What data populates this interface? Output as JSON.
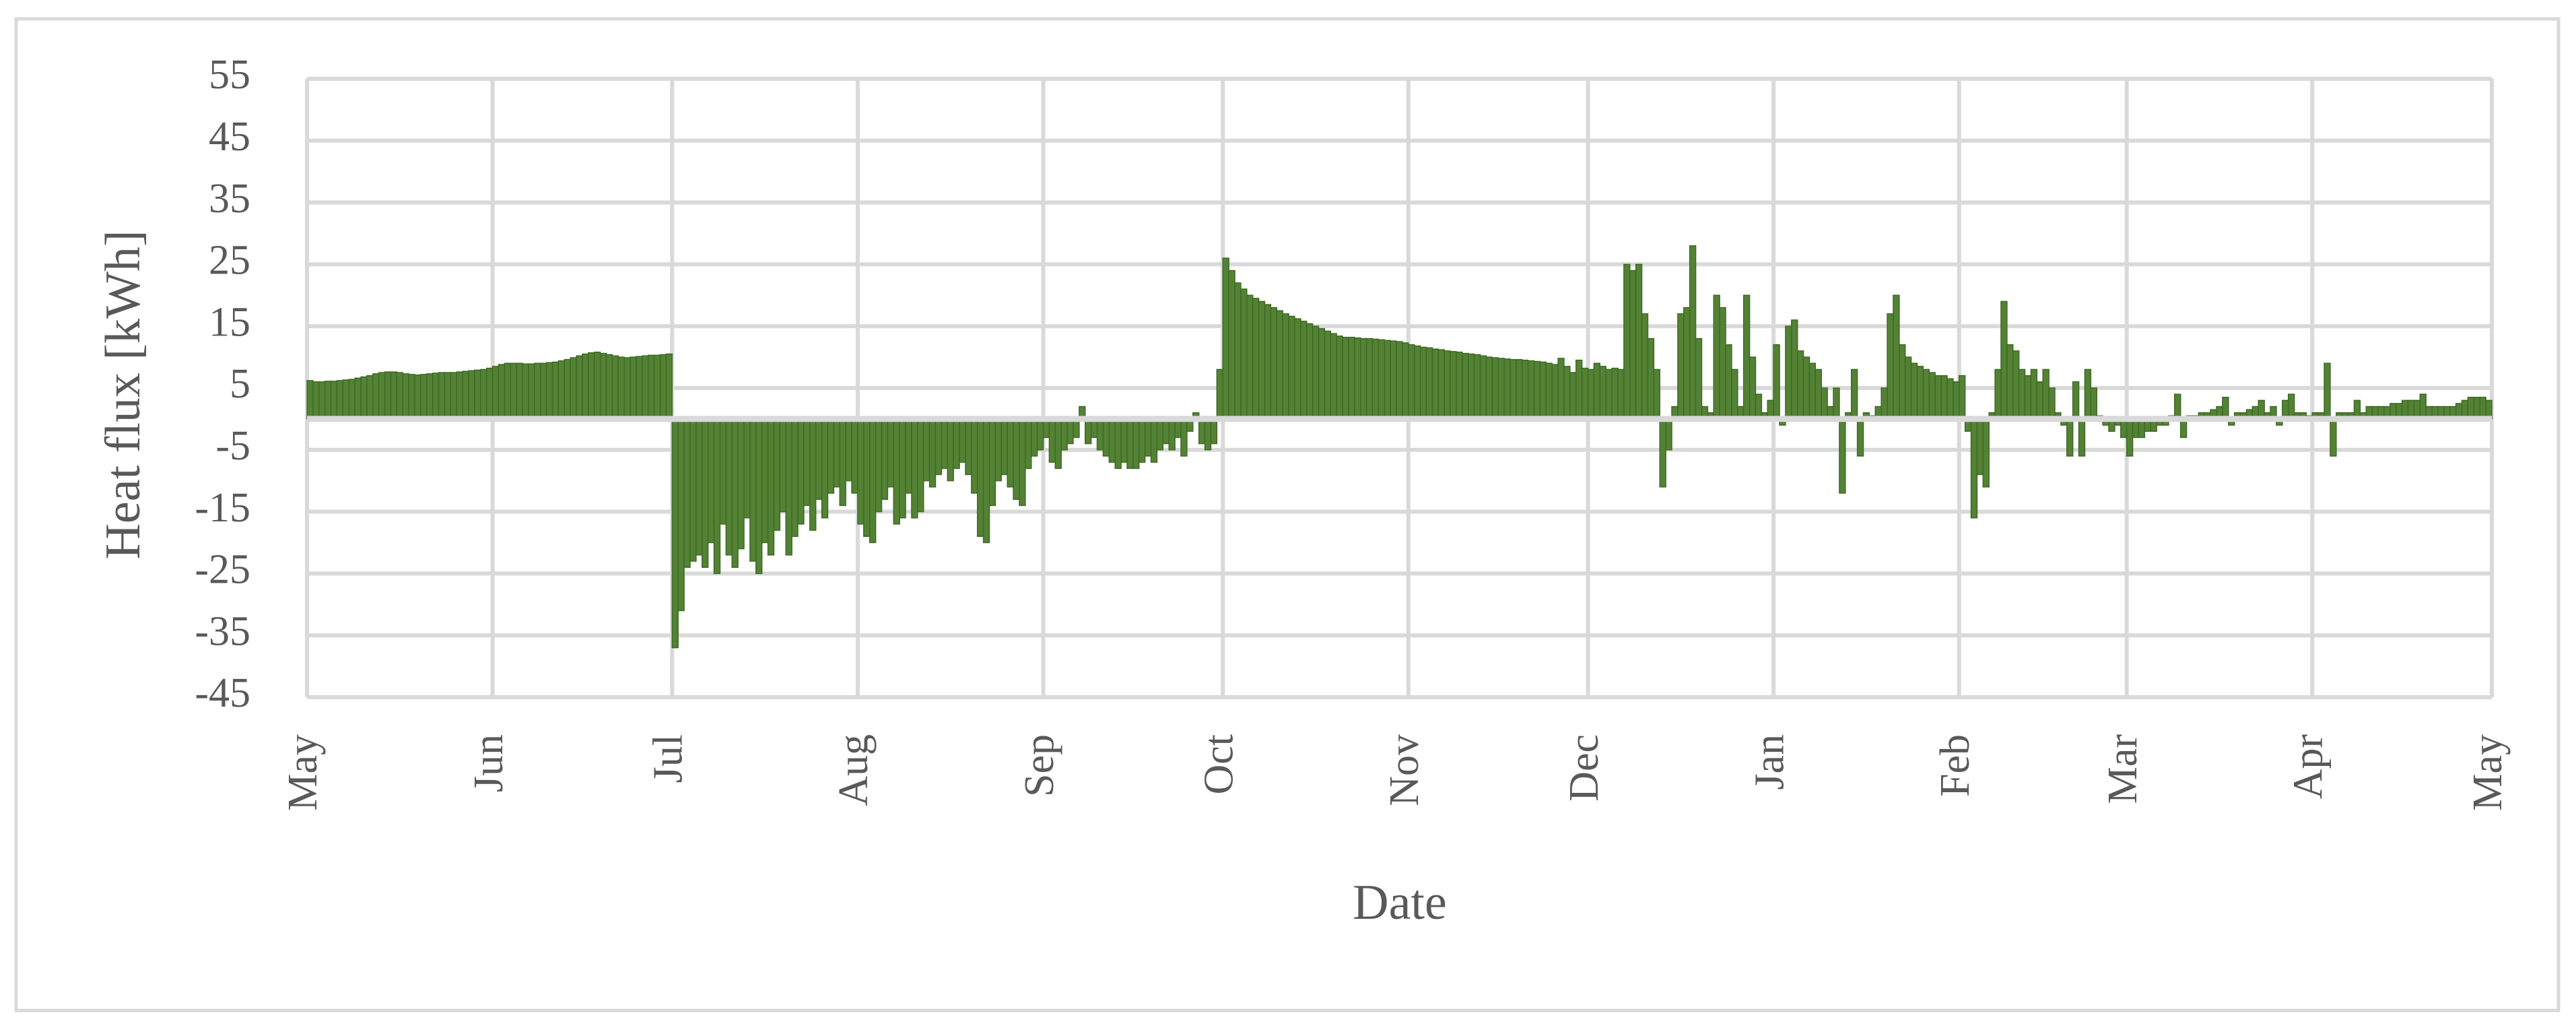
{
  "chart_data": {
    "type": "bar",
    "x_label": "Date",
    "y_label": "Heat flux [kWh]",
    "color": "#548235",
    "edge_color": "#3e6a24",
    "grid": true,
    "xlim": [
      0,
      365
    ],
    "xticks": [
      {
        "value": 0,
        "label": "May"
      },
      {
        "value": 31,
        "label": "Jun"
      },
      {
        "value": 61,
        "label": "Jul"
      },
      {
        "value": 92,
        "label": "Aug"
      },
      {
        "value": 123,
        "label": "Sep"
      },
      {
        "value": 153,
        "label": "Oct"
      },
      {
        "value": 184,
        "label": "Nov"
      },
      {
        "value": 214,
        "label": "Dec"
      },
      {
        "value": 245,
        "label": "Jan"
      },
      {
        "value": 276,
        "label": "Feb"
      },
      {
        "value": 304,
        "label": "Mar"
      },
      {
        "value": 335,
        "label": "Apr"
      },
      {
        "value": 365,
        "label": "May"
      }
    ],
    "ylim": [
      -45,
      55
    ],
    "yticks": [
      -45,
      -35,
      -25,
      -15,
      -5,
      5,
      15,
      25,
      35,
      45,
      55
    ],
    "x": [
      0,
      1,
      2,
      3,
      4,
      5,
      6,
      7,
      8,
      9,
      10,
      11,
      12,
      13,
      14,
      15,
      16,
      17,
      18,
      19,
      20,
      21,
      22,
      23,
      24,
      25,
      26,
      27,
      28,
      29,
      30,
      31,
      32,
      33,
      34,
      35,
      36,
      37,
      38,
      39,
      40,
      41,
      42,
      43,
      44,
      45,
      46,
      47,
      48,
      49,
      50,
      51,
      52,
      53,
      54,
      55,
      56,
      57,
      58,
      59,
      60,
      61,
      62,
      63,
      64,
      65,
      66,
      67,
      68,
      69,
      70,
      71,
      72,
      73,
      74,
      75,
      76,
      77,
      78,
      79,
      80,
      81,
      82,
      83,
      84,
      85,
      86,
      87,
      88,
      89,
      90,
      91,
      92,
      93,
      94,
      95,
      96,
      97,
      98,
      99,
      100,
      101,
      102,
      103,
      104,
      105,
      106,
      107,
      108,
      109,
      110,
      111,
      112,
      113,
      114,
      115,
      116,
      117,
      118,
      119,
      120,
      121,
      122,
      123,
      124,
      125,
      126,
      127,
      128,
      129,
      130,
      131,
      132,
      133,
      134,
      135,
      136,
      137,
      138,
      139,
      140,
      141,
      142,
      143,
      144,
      145,
      146,
      147,
      148,
      149,
      150,
      151,
      152,
      153,
      154,
      155,
      156,
      157,
      158,
      159,
      160,
      161,
      162,
      163,
      164,
      165,
      166,
      167,
      168,
      169,
      170,
      171,
      172,
      173,
      174,
      175,
      176,
      177,
      178,
      179,
      180,
      181,
      182,
      183,
      184,
      185,
      186,
      187,
      188,
      189,
      190,
      191,
      192,
      193,
      194,
      195,
      196,
      197,
      198,
      199,
      200,
      201,
      202,
      203,
      204,
      205,
      206,
      207,
      208,
      209,
      210,
      211,
      212,
      213,
      214,
      215,
      216,
      217,
      218,
      219,
      220,
      221,
      222,
      223,
      224,
      225,
      226,
      227,
      228,
      229,
      230,
      231,
      232,
      233,
      234,
      235,
      236,
      237,
      238,
      239,
      240,
      241,
      242,
      243,
      244,
      245,
      246,
      247,
      248,
      249,
      250,
      251,
      252,
      253,
      254,
      255,
      256,
      257,
      258,
      259,
      260,
      261,
      262,
      263,
      264,
      265,
      266,
      267,
      268,
      269,
      270,
      271,
      272,
      273,
      274,
      275,
      276,
      277,
      278,
      279,
      280,
      281,
      282,
      283,
      284,
      285,
      286,
      287,
      288,
      289,
      290,
      291,
      292,
      293,
      294,
      295,
      296,
      297,
      298,
      299,
      300,
      301,
      302,
      303,
      304,
      305,
      306,
      307,
      308,
      309,
      310,
      311,
      312,
      313,
      314,
      315,
      316,
      317,
      318,
      319,
      320,
      321,
      322,
      323,
      324,
      325,
      326,
      327,
      328,
      329,
      330,
      331,
      332,
      333,
      334,
      335,
      336,
      337,
      338,
      339,
      340,
      341,
      342,
      343,
      344,
      345,
      346,
      347,
      348,
      349,
      350,
      351,
      352,
      353,
      354,
      355,
      356,
      357,
      358,
      359,
      360,
      361,
      362,
      363,
      364
    ],
    "values": [
      6.2,
      6.0,
      6.0,
      6.1,
      6.1,
      6.2,
      6.3,
      6.4,
      6.6,
      6.8,
      7.0,
      7.3,
      7.5,
      7.6,
      7.6,
      7.5,
      7.3,
      7.2,
      7.1,
      7.2,
      7.3,
      7.4,
      7.5,
      7.5,
      7.5,
      7.6,
      7.7,
      7.8,
      7.9,
      8.0,
      8.2,
      8.5,
      8.8,
      9.0,
      9.0,
      9.0,
      8.9,
      8.9,
      9.0,
      9.0,
      9.1,
      9.2,
      9.4,
      9.6,
      9.9,
      10.2,
      10.5,
      10.7,
      10.8,
      10.6,
      10.4,
      10.2,
      10.0,
      9.9,
      10.0,
      10.1,
      10.2,
      10.3,
      10.3,
      10.4,
      10.5,
      -37,
      -31,
      -24,
      -23,
      -22,
      -24,
      -20,
      -25,
      -17,
      -22,
      -24,
      -21,
      -16,
      -23,
      -25,
      -20,
      -22,
      -18,
      -15,
      -22,
      -19,
      -17,
      -14,
      -18,
      -13,
      -16,
      -12,
      -11,
      -14,
      -10,
      -12,
      -17,
      -19,
      -20,
      -15,
      -13,
      -11,
      -17,
      -16,
      -12,
      -16,
      -15,
      -10,
      -11,
      -9,
      -8,
      -10,
      -8,
      -7,
      -9,
      -12,
      -19,
      -20,
      -14,
      -10,
      -9,
      -11,
      -13,
      -14,
      -8,
      -6,
      -5,
      -3,
      -7,
      -8,
      -5,
      -4,
      -3,
      2,
      -4,
      -3,
      -5,
      -6,
      -7,
      -8,
      -7,
      -8,
      -8,
      -7,
      -6,
      -7,
      -5,
      -4,
      -5,
      -3,
      -6,
      -2,
      1,
      -4,
      -5,
      -4,
      8,
      26,
      24,
      22,
      21,
      20,
      19.5,
      19,
      18.5,
      18,
      17.5,
      17,
      16.6,
      16.2,
      15.8,
      15.4,
      15,
      14.6,
      14.2,
      13.8,
      13.4,
      13.2,
      13.2,
      13.1,
      13.0,
      13.0,
      12.9,
      12.8,
      12.7,
      12.6,
      12.5,
      12.3,
      12.0,
      11.8,
      11.6,
      11.5,
      11.3,
      11.2,
      11.0,
      10.9,
      10.8,
      10.6,
      10.5,
      10.4,
      10.2,
      10.0,
      9.9,
      9.8,
      9.7,
      9.6,
      9.6,
      9.5,
      9.4,
      9.3,
      9.2,
      9.0,
      8.8,
      9.8,
      8.5,
      7.5,
      9.5,
      8.2,
      8.0,
      9.0,
      8.5,
      8.0,
      8.2,
      8.0,
      25,
      24,
      25,
      17,
      13,
      8,
      -11,
      -5,
      2,
      17,
      18,
      28,
      13,
      2,
      1,
      20,
      18,
      12,
      8,
      2,
      20,
      10,
      4,
      1,
      3,
      12,
      -1,
      15,
      16,
      11,
      10,
      9,
      8,
      5,
      2,
      5,
      -12,
      1,
      8,
      -6,
      1,
      0.5,
      2,
      5,
      17,
      20,
      12,
      10,
      9,
      8.5,
      8,
      7.5,
      7,
      7,
      6.5,
      6,
      7,
      -2,
      -16,
      -9,
      -11,
      1,
      8,
      19,
      12,
      11,
      8,
      7,
      8,
      6,
      8,
      5,
      1,
      -1,
      -6,
      6,
      -6,
      8,
      5,
      0.5,
      -1,
      -2,
      -1,
      -3,
      -6,
      -3,
      -3,
      -2,
      -2,
      -1,
      -1,
      0.5,
      4,
      -3,
      0.5,
      0.5,
      1,
      1,
      1.5,
      2,
      3.5,
      -1,
      1,
      1,
      1.5,
      2,
      3,
      1,
      2,
      -1,
      3,
      4,
      1,
      1,
      0.5,
      1,
      1,
      9,
      -6,
      1,
      1,
      1,
      3,
      1,
      2,
      2,
      2,
      2,
      2.5,
      2.5,
      3,
      3,
      3,
      4,
      2,
      2,
      2,
      2,
      2,
      2.5,
      3,
      3.5,
      3.5,
      3.5,
      3
    ]
  }
}
